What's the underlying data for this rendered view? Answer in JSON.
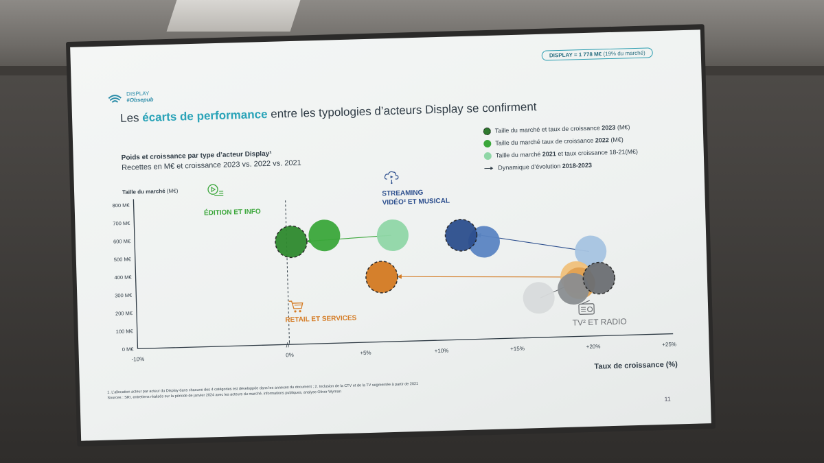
{
  "slide": {
    "logo_top": "DISPLAY",
    "logo_bottom": "#Obsepub",
    "badge_bold": "DISPLAY = 1 778 M€",
    "badge_light": "(19% du marché)",
    "title_before": "Les ",
    "title_highlight": "écarts de performance",
    "title_after": " entre les typologies d’acteurs Display se confirment",
    "subtitle": "Poids et croissance par type d’acteur Display¹",
    "subtitle2": "Recettes en M€ et croissance 2023 vs. 2022 vs. 2021",
    "y_title_bold": "Taille du marché",
    "y_title_light": "(M€)",
    "legend": [
      {
        "label_plain": "Taille du marché et taux de croissance ",
        "label_bold": "2023",
        "label_tail": " (M€)",
        "style": "dashed"
      },
      {
        "label_plain": "Taille du marché taux de croissance ",
        "label_bold": "2022",
        "label_tail": " (M€)",
        "style": "solid"
      },
      {
        "label_plain": "Taille du marché ",
        "label_bold": "2021",
        "label_tail": " et taux croissance 18-21(M€)",
        "style": "light"
      },
      {
        "label_plain": "Dynamique d’évolution ",
        "label_bold": "2018-2023",
        "label_tail": "",
        "style": "arrow"
      }
    ],
    "categories": [
      {
        "name": "ÉDITION ET INFO",
        "color": "#3aa63a"
      },
      {
        "name": "STREAMING\nVIDÉO² ET MUSICAL",
        "color": "#2d4f8e"
      },
      {
        "name": "RETAIL ET SERVICES",
        "color": "#d47a22"
      },
      {
        "name": "TV² ET RADIO",
        "color": "#6c6f73"
      }
    ],
    "footnote1": "1. L’allocation acteur par acteur du Display dans chacune des 4 catégories est développée dans les annexes du document ; 2. Inclusion de la CTV et de la TV segmentée à partir de 2021",
    "footnote2": "Sources : SRI, entretiens réalisés sur la période de janvier 2024 avec les acteurs du marché, informations publiques, analyse Oliver Wyman",
    "page_number": "11"
  },
  "chart_data": {
    "type": "scatter",
    "title": "Poids et croissance par type d’acteur Display¹",
    "xlabel": "Taux de croissance (%)",
    "ylabel": "Taille du marché (M€)",
    "x_ticks": [
      "-10%",
      "0%",
      "+5%",
      "+10%",
      "+15%",
      "+20%",
      "+25%"
    ],
    "y_ticks": [
      "0 M€",
      "100 M€",
      "200 M€",
      "300 M€",
      "400 M€",
      "500 M€",
      "600 M€",
      "700 M€",
      "800 M€"
    ],
    "xlim": [
      -10,
      25
    ],
    "ylim": [
      0,
      800
    ],
    "x_axis_break": "//",
    "series": [
      {
        "name": "ÉDITION ET INFO",
        "color": "#3aa63a",
        "points": [
          {
            "year": "2021",
            "x": 7.0,
            "y": 590
          },
          {
            "year": "2022",
            "x": 2.5,
            "y": 600
          },
          {
            "year": "2023",
            "x": 0.3,
            "y": 570
          }
        ]
      },
      {
        "name": "STREAMING VIDÉO² ET MUSICAL",
        "color": "#2d4f8e",
        "points": [
          {
            "year": "2021",
            "x": 20.0,
            "y": 470
          },
          {
            "year": "2022",
            "x": 13.0,
            "y": 540
          },
          {
            "year": "2023",
            "x": 11.5,
            "y": 580
          }
        ]
      },
      {
        "name": "RETAIL ET SERVICES",
        "color": "#d47a22",
        "points": [
          {
            "year": "2021",
            "x": 19.0,
            "y": 330
          },
          {
            "year": "2022",
            "x": 19.2,
            "y": 295
          },
          {
            "year": "2023",
            "x": 6.2,
            "y": 360
          }
        ]
      },
      {
        "name": "TV² ET RADIO",
        "color": "#6c6f73",
        "points": [
          {
            "year": "2021",
            "x": 16.5,
            "y": 220
          },
          {
            "year": "2022",
            "x": 18.8,
            "y": 265
          },
          {
            "year": "2023",
            "x": 20.5,
            "y": 320
          }
        ]
      }
    ],
    "legend_position": "top-right",
    "grid": false
  }
}
